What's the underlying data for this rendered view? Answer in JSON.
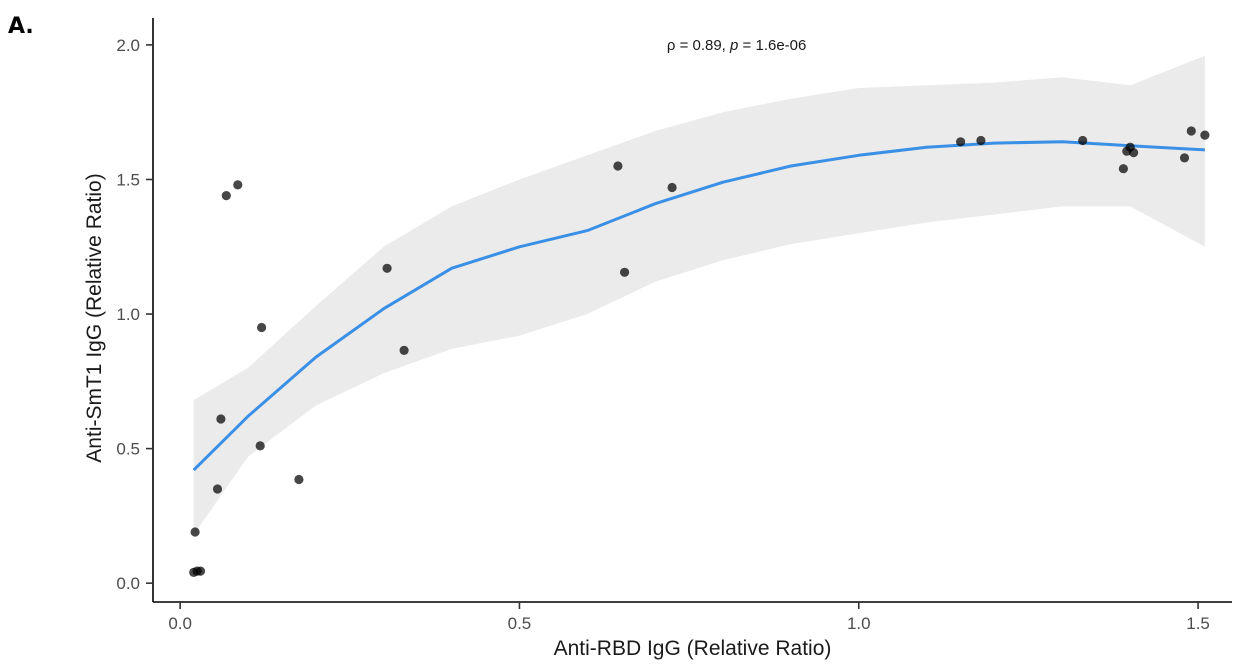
{
  "panel_label": "A.",
  "chart_data": {
    "type": "scatter",
    "xlabel": "Anti-RBD IgG (Relative Ratio)",
    "ylabel": "Anti-SmT1 IgG (Relative Ratio)",
    "xlim": [
      -0.04,
      1.55
    ],
    "ylim": [
      -0.07,
      2.1
    ],
    "xticks": [
      0.0,
      0.5,
      1.0,
      1.5
    ],
    "xtick_labels": [
      "0.0",
      "0.5",
      "1.0",
      "1.5"
    ],
    "yticks": [
      0.0,
      0.5,
      1.0,
      1.5,
      2.0
    ],
    "ytick_labels": [
      "0.0",
      "0.5",
      "1.0",
      "1.5",
      "2.0"
    ],
    "grid": false,
    "annotation": {
      "rho_symbol": "ρ",
      "rho_value": "= 0.89,",
      "p_symbol": "p",
      "p_value": "= 1.6e-06",
      "x": 0.82,
      "y": 2.0
    },
    "point_color": "#000000",
    "line_color": "#3a8fe6",
    "band_color": "#ebebeb",
    "points": [
      {
        "x": 0.02,
        "y": 0.04
      },
      {
        "x": 0.025,
        "y": 0.045
      },
      {
        "x": 0.03,
        "y": 0.045
      },
      {
        "x": 0.022,
        "y": 0.19
      },
      {
        "x": 0.055,
        "y": 0.35
      },
      {
        "x": 0.06,
        "y": 0.61
      },
      {
        "x": 0.068,
        "y": 1.44
      },
      {
        "x": 0.085,
        "y": 1.48
      },
      {
        "x": 0.118,
        "y": 0.51
      },
      {
        "x": 0.12,
        "y": 0.95
      },
      {
        "x": 0.175,
        "y": 0.385
      },
      {
        "x": 0.305,
        "y": 1.17
      },
      {
        "x": 0.33,
        "y": 0.865
      },
      {
        "x": 0.645,
        "y": 1.55
      },
      {
        "x": 0.655,
        "y": 1.155
      },
      {
        "x": 0.725,
        "y": 1.47
      },
      {
        "x": 1.15,
        "y": 1.64
      },
      {
        "x": 1.18,
        "y": 1.645
      },
      {
        "x": 1.33,
        "y": 1.645
      },
      {
        "x": 1.39,
        "y": 1.54
      },
      {
        "x": 1.395,
        "y": 1.605
      },
      {
        "x": 1.4,
        "y": 1.62
      },
      {
        "x": 1.405,
        "y": 1.6
      },
      {
        "x": 1.48,
        "y": 1.58
      },
      {
        "x": 1.49,
        "y": 1.68
      },
      {
        "x": 1.51,
        "y": 1.665
      }
    ],
    "smooth": {
      "x": [
        0.02,
        0.1,
        0.2,
        0.3,
        0.4,
        0.5,
        0.6,
        0.7,
        0.8,
        0.9,
        1.0,
        1.1,
        1.2,
        1.3,
        1.4,
        1.51
      ],
      "y": [
        0.42,
        0.62,
        0.84,
        1.02,
        1.17,
        1.25,
        1.31,
        1.41,
        1.49,
        1.55,
        1.59,
        1.62,
        1.635,
        1.64,
        1.625,
        1.61
      ],
      "lower": [
        0.18,
        0.47,
        0.66,
        0.78,
        0.87,
        0.92,
        1.0,
        1.12,
        1.2,
        1.26,
        1.3,
        1.34,
        1.37,
        1.4,
        1.4,
        1.25
      ],
      "upper": [
        0.68,
        0.8,
        1.03,
        1.25,
        1.4,
        1.5,
        1.59,
        1.68,
        1.75,
        1.8,
        1.84,
        1.85,
        1.86,
        1.88,
        1.85,
        1.96
      ]
    }
  }
}
